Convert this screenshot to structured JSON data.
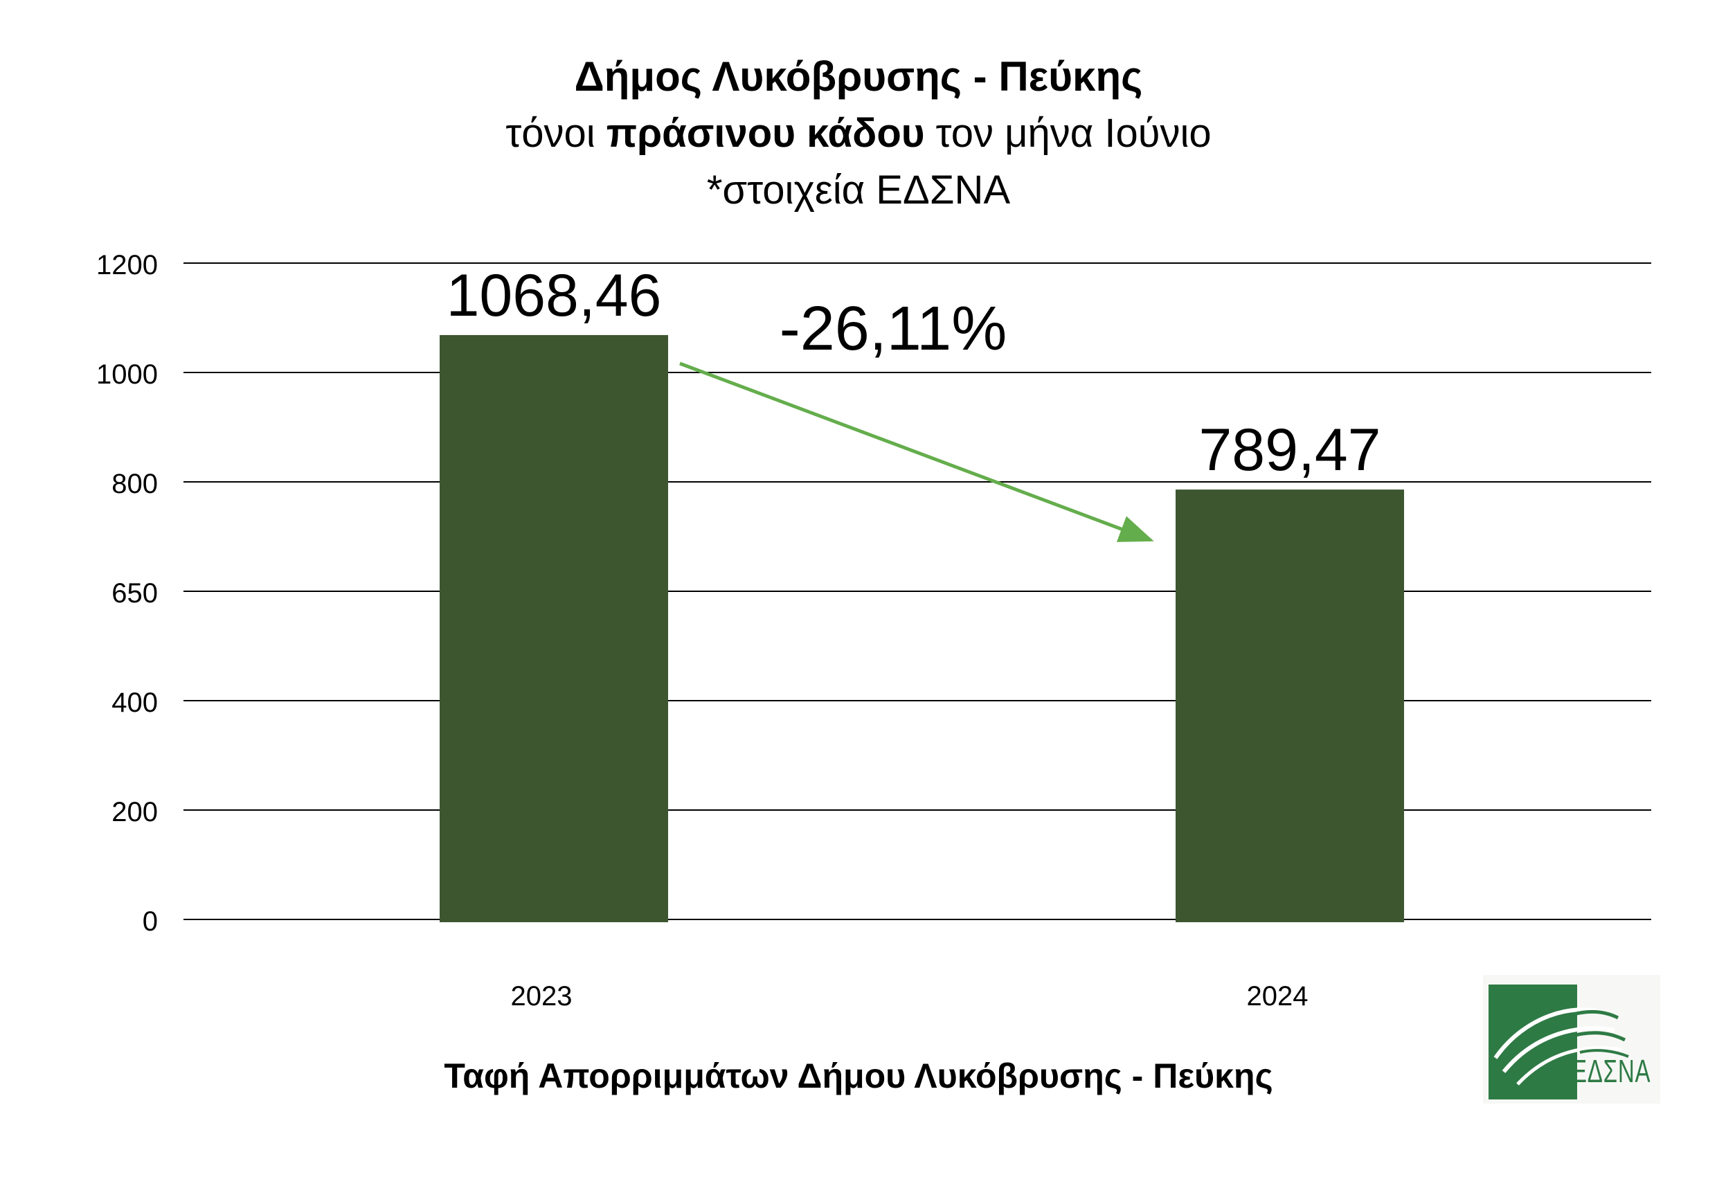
{
  "title": {
    "line1": "Δήμος Λυκόβρυσης - Πεύκης",
    "line2_pre": "τόνοι ",
    "line2_bold": "πράσινου κάδου",
    "line2_post": " τον μήνα Ιούνιο",
    "line3": "*στοιχεία ΕΔΣΝΑ"
  },
  "chart_data": {
    "type": "bar",
    "categories": [
      "2023",
      "2024"
    ],
    "values": [
      1068.46,
      789.47
    ],
    "data_labels": [
      "1068,46",
      "789,47"
    ],
    "yticks": [
      "0",
      "200",
      "400",
      "650",
      "800",
      "1000",
      "1200"
    ],
    "ylim": [
      0,
      1200
    ],
    "grid": true,
    "bar_color": "#3d5630",
    "annotation": {
      "text": "-26,11%",
      "arrow_color": "#64ad4c"
    }
  },
  "footer": {
    "caption": "Ταφή Απορριμμάτων Δήμου Λυκόβρυσης - Πεύκης"
  },
  "logo": {
    "text": "ΕΔΣΝΑ",
    "color": "#2e7a45"
  }
}
